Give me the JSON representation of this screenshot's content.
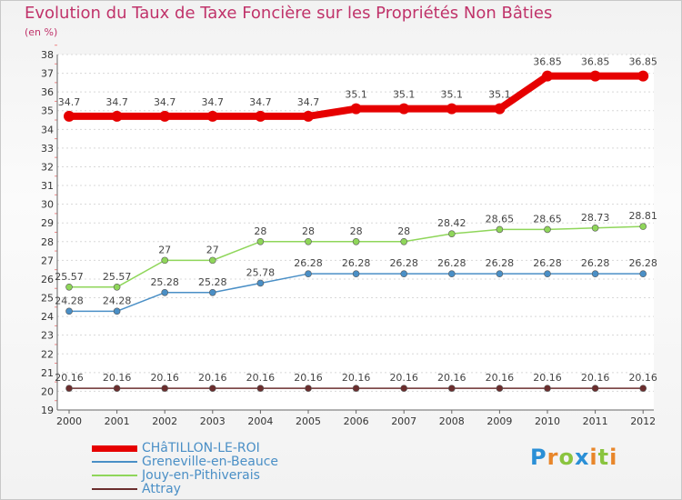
{
  "chart_data": {
    "type": "line",
    "title": "Evolution du Taux de Taxe Foncière sur les Propriétés Non Bâties",
    "unit_label": "(en %)",
    "categories": [
      "2000",
      "2001",
      "2002",
      "2003",
      "2004",
      "2005",
      "2006",
      "2007",
      "2008",
      "2009",
      "2010",
      "2011",
      "2012"
    ],
    "ylim": [
      19,
      38
    ],
    "yticks": [
      "19",
      "20",
      "21",
      "22",
      "23",
      "24",
      "25",
      "26",
      "27",
      "28",
      "29",
      "30",
      "31",
      "32",
      "33",
      "34",
      "35",
      "36",
      "37",
      "38"
    ],
    "series": [
      {
        "name": "CHâTILLON-LE-ROI",
        "color": "#e60000",
        "labels": [
          "34.7",
          "34.7",
          "34.7",
          "34.7",
          "34.7",
          "34.7",
          "35.1",
          "35.1",
          "35.1",
          "35.1",
          "36.85",
          "36.85",
          "36.85"
        ],
        "values": [
          34.7,
          34.7,
          34.7,
          34.7,
          34.7,
          34.7,
          35.1,
          35.1,
          35.1,
          35.1,
          36.85,
          36.85,
          36.85
        ]
      },
      {
        "name": "Greneville-en-Beauce",
        "color": "#4a8fc6",
        "labels": [
          "24.28",
          "24.28",
          "25.28",
          "25.28",
          "25.78",
          "26.28",
          "26.28",
          "26.28",
          "26.28",
          "26.28",
          "26.28",
          "26.28",
          "26.28"
        ],
        "values": [
          24.28,
          24.28,
          25.28,
          25.28,
          25.78,
          26.28,
          26.28,
          26.28,
          26.28,
          26.28,
          26.28,
          26.28,
          26.28
        ]
      },
      {
        "name": "Jouy-en-Pithiverais",
        "color": "#8fd65a",
        "labels": [
          "25.57",
          "25.57",
          "27",
          "27",
          "28",
          "28",
          "28",
          "28",
          "28.42",
          "28.65",
          "28.65",
          "28.73",
          "28.81"
        ],
        "values": [
          25.57,
          25.57,
          27,
          27,
          28,
          28,
          28,
          28,
          28.42,
          28.65,
          28.65,
          28.73,
          28.81
        ]
      },
      {
        "name": "Attray",
        "color": "#6b2e2e",
        "labels": [
          "20.16",
          "20.16",
          "20.16",
          "20.16",
          "20.16",
          "20.16",
          "20.16",
          "20.16",
          "20.16",
          "20.16",
          "20.16",
          "20.16",
          "20.16"
        ],
        "values": [
          20.16,
          20.16,
          20.16,
          20.16,
          20.16,
          20.16,
          20.16,
          20.16,
          20.16,
          20.16,
          20.16,
          20.16,
          20.16
        ]
      }
    ]
  },
  "legend": {
    "items": [
      {
        "label": "CHâTILLON-LE-ROI",
        "color": "#e60000"
      },
      {
        "label": "Greneville-en-Beauce",
        "color": "#4a8fc6"
      },
      {
        "label": "Jouy-en-Pithiverais",
        "color": "#8fd65a"
      },
      {
        "label": "Attray",
        "color": "#6b2e2e"
      }
    ]
  },
  "logo": {
    "text": "Proxiti"
  }
}
